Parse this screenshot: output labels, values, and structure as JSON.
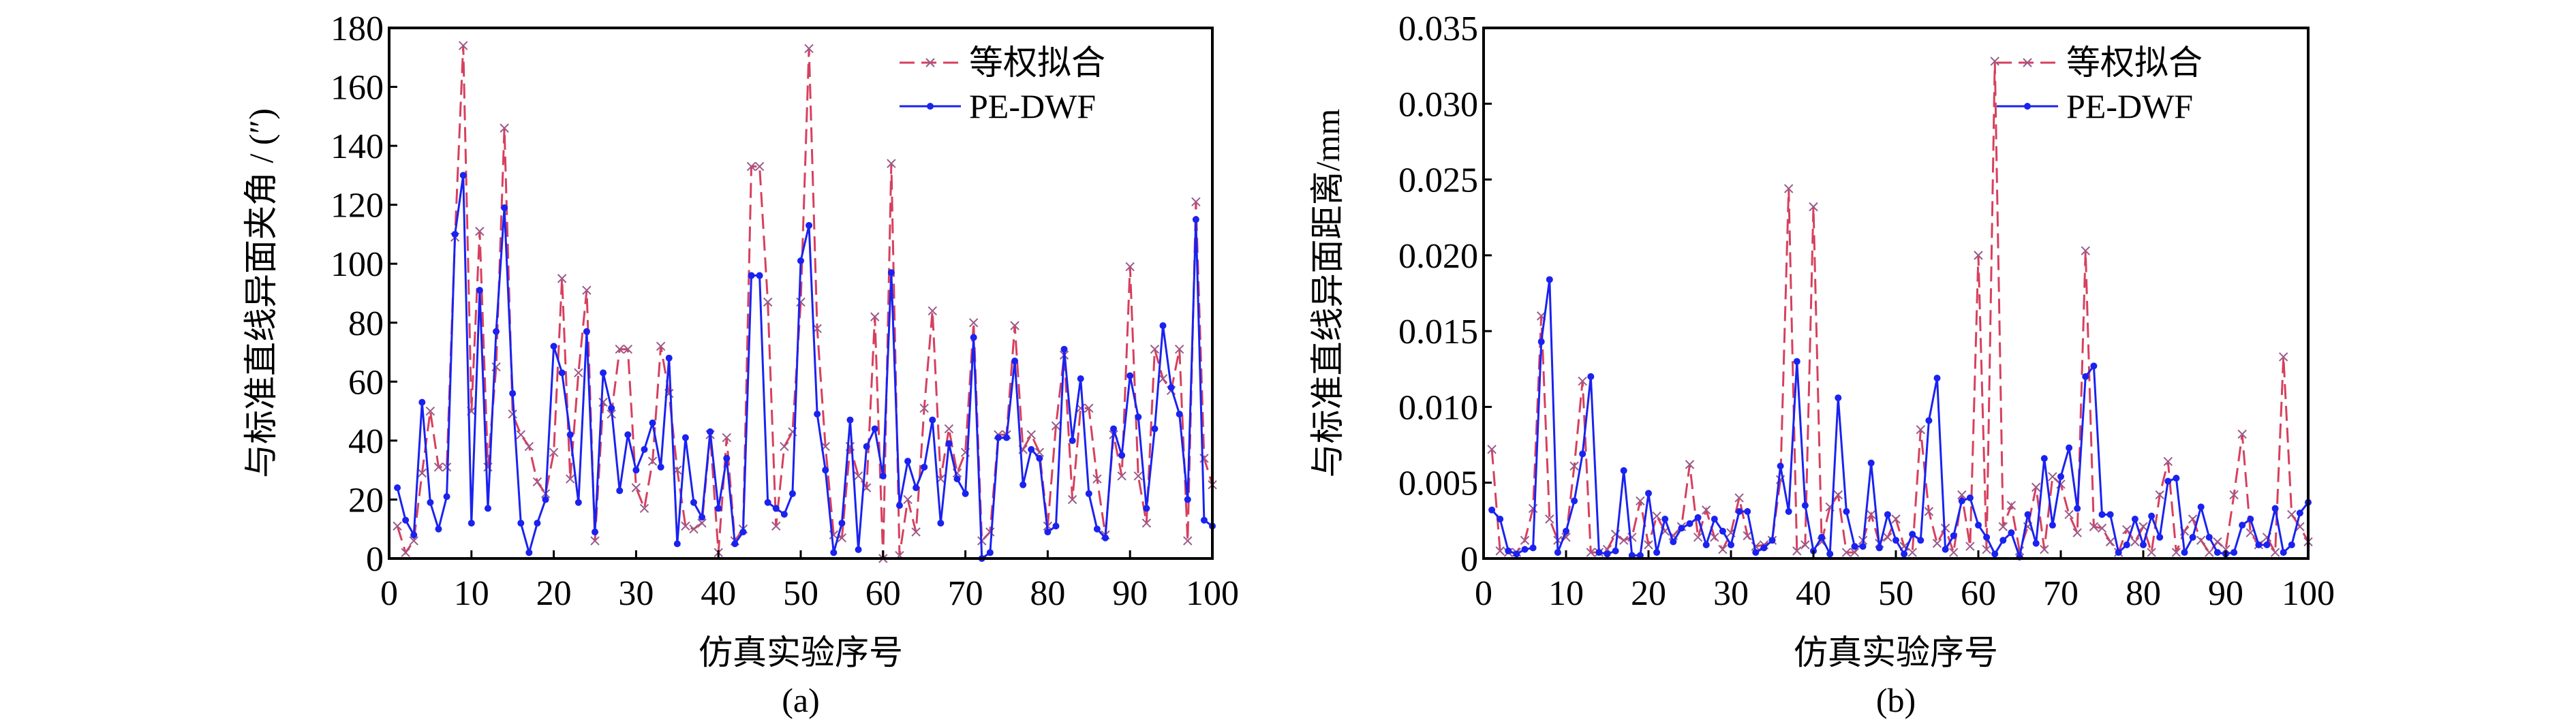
{
  "chart_data": [
    {
      "type": "line",
      "panel_label": "(a)",
      "xlabel": "仿真实验序号",
      "ylabel": "与标准直线异面夹角 / (″)",
      "xlim": [
        0,
        100
      ],
      "ylim": [
        0,
        180
      ],
      "xticks": [
        0,
        10,
        20,
        30,
        40,
        50,
        60,
        70,
        80,
        90,
        100
      ],
      "yticks": [
        0,
        20,
        40,
        60,
        80,
        100,
        120,
        140,
        160,
        180
      ],
      "ytick_labels": [
        "0",
        "20",
        "40",
        "60",
        "80",
        "100",
        "120",
        "140",
        "160",
        "180"
      ],
      "legend_position": "top-right",
      "series": [
        {
          "name": "等权拟合",
          "color": "#d6405e",
          "style": "dashed",
          "marker": "x",
          "values": [
            11,
            2,
            6,
            29,
            50,
            31,
            31,
            109,
            174,
            50,
            111,
            31,
            65,
            146,
            49,
            42,
            38,
            26,
            22,
            36,
            95,
            27,
            63,
            91,
            6,
            53,
            49,
            71,
            71,
            24,
            17,
            33,
            72,
            56,
            30,
            11,
            10,
            12,
            42,
            2,
            41,
            6,
            10,
            133,
            133,
            87,
            11,
            38,
            43,
            87,
            173,
            78,
            38,
            8,
            7,
            38,
            28,
            24,
            82,
            0,
            134,
            1,
            20,
            9,
            51,
            84,
            27,
            44,
            29,
            36,
            80,
            6,
            9,
            42,
            42,
            79,
            37,
            42,
            36,
            11,
            45,
            69,
            20,
            51,
            51,
            27,
            8,
            42,
            28,
            99,
            28,
            12,
            71,
            61,
            57,
            71,
            6,
            121,
            34,
            25
          ]
        },
        {
          "name": "PE-DWF",
          "color": "#1a22f0",
          "style": "solid",
          "marker": "dot",
          "values": [
            24,
            13,
            8,
            53,
            19,
            10,
            21,
            110,
            130,
            12,
            91,
            17,
            77,
            119,
            56,
            12,
            2,
            12,
            20,
            72,
            63,
            42,
            19,
            77,
            9,
            63,
            51,
            23,
            42,
            30,
            37,
            46,
            31,
            68,
            5,
            41,
            19,
            14,
            43,
            17,
            34,
            5,
            9,
            96,
            96,
            19,
            17,
            15,
            22,
            101,
            113,
            49,
            30,
            2,
            12,
            47,
            3,
            38,
            44,
            28,
            97,
            18,
            33,
            24,
            31,
            47,
            12,
            39,
            27,
            22,
            75,
            0,
            2,
            41,
            41,
            67,
            25,
            37,
            34,
            9,
            11,
            71,
            40,
            61,
            22,
            10,
            7,
            44,
            35,
            62,
            48,
            17,
            44,
            79,
            58,
            49,
            20,
            115,
            13,
            11
          ]
        }
      ]
    },
    {
      "type": "line",
      "panel_label": "(b)",
      "xlabel": "仿真实验序号",
      "ylabel": "与标准直线异面距离/mm",
      "xlim": [
        0,
        100
      ],
      "ylim": [
        0,
        0.035
      ],
      "xticks": [
        0,
        10,
        20,
        30,
        40,
        50,
        60,
        70,
        80,
        90,
        100
      ],
      "yticks": [
        0,
        0.005,
        0.01,
        0.015,
        0.02,
        0.025,
        0.03,
        0.035
      ],
      "ytick_labels": [
        "0",
        "0.005",
        "0.010",
        "0.015",
        "0.020",
        "0.025",
        "0.030",
        "0.035"
      ],
      "legend_position": "top-right",
      "series": [
        {
          "name": "等权拟合",
          "color": "#d6405e",
          "style": "dashed",
          "marker": "x",
          "values": [
            0.0072,
            0.0005,
            0.0004,
            0.0004,
            0.0012,
            0.0033,
            0.016,
            0.0026,
            0.0012,
            0.0014,
            0.0061,
            0.0117,
            0.0004,
            0.0004,
            0.0006,
            0.0016,
            0.0012,
            0.0014,
            0.0038,
            0.0009,
            0.0028,
            0.0018,
            0.0015,
            0.0021,
            0.0062,
            0.0014,
            0.0032,
            0.0014,
            0.0006,
            0.0017,
            0.004,
            0.0015,
            0.0008,
            0.0009,
            0.0012,
            0.0052,
            0.0244,
            0.0005,
            0.0009,
            0.0232,
            0.0011,
            0.0034,
            0.0042,
            0.0004,
            0.0004,
            0.0012,
            0.0029,
            0.001,
            0.0014,
            0.0026,
            0.0008,
            0.0004,
            0.0085,
            0.0031,
            0.001,
            0.002,
            0.0004,
            0.0042,
            0.0008,
            0.02,
            0.0006,
            0.0328,
            0.0021,
            0.0035,
            0.0005,
            0.0021,
            0.0047,
            0.0006,
            0.0054,
            0.0049,
            0.0029,
            0.0017,
            0.0203,
            0.0021,
            0.002,
            0.0011,
            0.0004,
            0.0019,
            0.0011,
            0.0021,
            0.0004,
            0.0042,
            0.0064,
            0.0004,
            0.0018,
            0.0026,
            0.0012,
            0.0004,
            0.0011,
            0.0006,
            0.0042,
            0.0082,
            0.0017,
            0.0009,
            0.0014,
            0.0004,
            0.0133,
            0.0029,
            0.0021,
            0.0011
          ]
        },
        {
          "name": "PE-DWF",
          "color": "#1a22f0",
          "style": "solid",
          "marker": "dot",
          "values": [
            0.0032,
            0.0026,
            0.0005,
            0.0003,
            0.0006,
            0.0007,
            0.0143,
            0.0184,
            0.0004,
            0.0018,
            0.0038,
            0.0069,
            0.012,
            0.0004,
            0.0003,
            0.0005,
            0.0058,
            0.0002,
            0.0002,
            0.0043,
            0.0004,
            0.0026,
            0.0011,
            0.002,
            0.0023,
            0.0027,
            0.0009,
            0.0026,
            0.0018,
            0.0009,
            0.0031,
            0.0031,
            0.0004,
            0.0007,
            0.0012,
            0.0061,
            0.0031,
            0.013,
            0.0035,
            0.0005,
            0.0014,
            0.0003,
            0.0106,
            0.0031,
            0.0008,
            0.0008,
            0.0063,
            0.0007,
            0.0029,
            0.0012,
            0.0003,
            0.0016,
            0.0012,
            0.0091,
            0.0119,
            0.0006,
            0.0015,
            0.0038,
            0.004,
            0.0022,
            0.0014,
            0.0003,
            0.0012,
            0.0017,
            0.0001,
            0.0029,
            0.001,
            0.0066,
            0.0022,
            0.0054,
            0.0073,
            0.0033,
            0.012,
            0.0127,
            0.0029,
            0.0029,
            0.0004,
            0.0009,
            0.0026,
            0.0009,
            0.0028,
            0.0014,
            0.0051,
            0.0053,
            0.0004,
            0.0014,
            0.0034,
            0.0014,
            0.0004,
            0.0003,
            0.0004,
            0.0022,
            0.0026,
            0.0009,
            0.0009,
            0.0033,
            0.0004,
            0.0009,
            0.003,
            0.0037
          ]
        }
      ]
    }
  ]
}
